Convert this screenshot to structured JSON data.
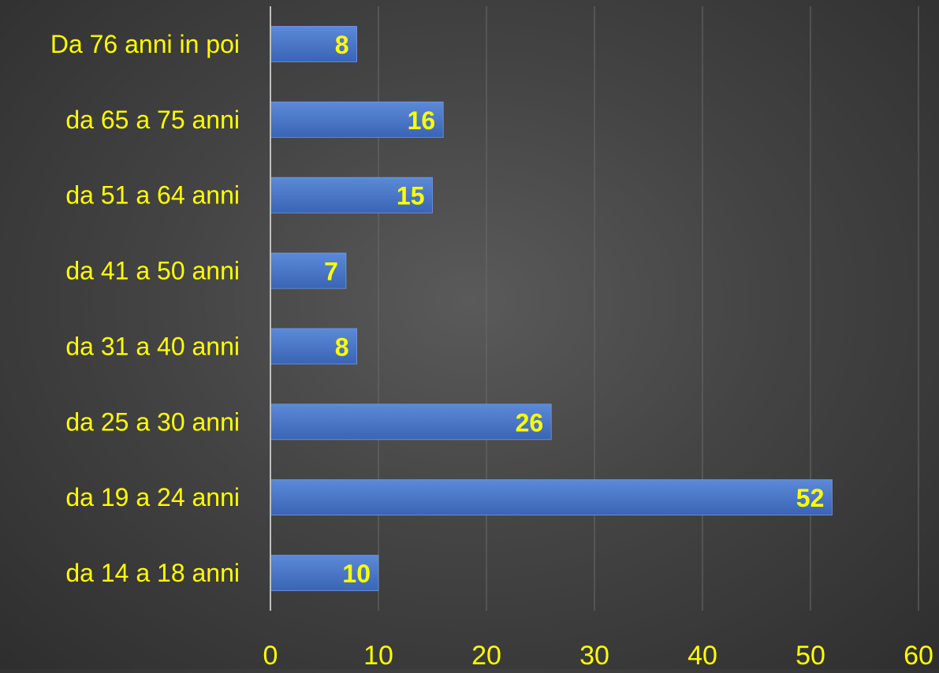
{
  "chart_data": {
    "type": "bar",
    "orientation": "horizontal",
    "categories": [
      "da 14 a 18 anni",
      "da 19 a 24 anni",
      "da 25 a 30 anni",
      "da 31 a 40 anni",
      "da 41 a 50 anni",
      "da 51 a 64 anni",
      "da 65 a 75 anni",
      "Da 76 anni in poi"
    ],
    "values": [
      10,
      52,
      26,
      8,
      7,
      15,
      16,
      8
    ],
    "data_labels": [
      "10",
      "52",
      "26",
      "8",
      "7",
      "15",
      "16",
      "8"
    ],
    "x_ticks": [
      0,
      10,
      20,
      30,
      40,
      50,
      60
    ],
    "x_tick_labels": [
      "0",
      "10",
      "20",
      "30",
      "40",
      "50",
      "60"
    ],
    "xlim": [
      0,
      60
    ],
    "title": "",
    "xlabel": "",
    "ylabel": "",
    "grid": "vertical",
    "legend": "none",
    "colors": {
      "bar": "#4472c4",
      "bar_light": "#5b8ad8",
      "label_text": "#ffff00",
      "gridline": "#6a6a6a",
      "axis": "#bfbfbf",
      "background": "#444444"
    }
  }
}
